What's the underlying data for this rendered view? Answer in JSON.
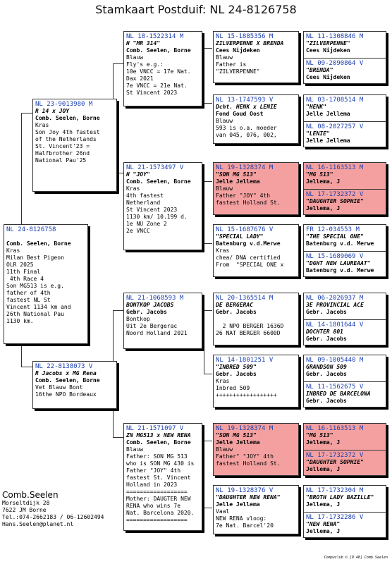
{
  "title": "Stamkaart Postduif: NL  24-8126758",
  "subject": {
    "ring": "NL  24-8126758",
    "name": "",
    "owner": "Comb. Seelen, Borne",
    "color": "Kras",
    "notes": "Milan Best Pigeon\nOLR 2025\n11th Final\n 4th Race 4\nSon MG513 is e.g.\nfather of 4th\nfastest NL St\nVincent 1134 km and\n26th National Pau\n1130 km."
  },
  "gen1": [
    {
      "ring": "NL  23-9013980 M",
      "name": "R 14 x JOY",
      "owner": "Comb. Seelen, Borne",
      "color": "Kras",
      "notes": "Son Joy 4th fastest\nof the Netherlands\nSt. Vincent'23 =\nHalfbrother 26nd\nNational Pau'25"
    },
    {
      "ring": "NL  22-8138073 V",
      "name": "R Jacobs x MG Rena",
      "owner": "Comb. Seelen, Borne",
      "color": "Vet Blauw Bont",
      "notes": "16the NPO Bordeaux"
    }
  ],
  "gen2": [
    {
      "ring": "NL  18-1522314 M",
      "name": "H \"MR 314\"",
      "owner": "Comb. Seelen, Borne",
      "color": "Blauw",
      "notes": "Fly's e.g.:\n10e VNCC = 17e Nat.\nDax 2021\n7e VNCC = 21e Nat.\nSt Vincent 2023"
    },
    {
      "ring": "NL  21-1573497 V",
      "name": "H \"JOY\"",
      "owner": "Comb. Seelen, Borne",
      "color": "Kras",
      "notes": "4th fastest\nNetherland\nSt Vincent 2023\n1130 km/ 10.199 d.\n1e NU Zone 2\n2e VNCC"
    },
    {
      "ring": "NL  21-1068593 M",
      "name": "BONTKOP JACOBS",
      "owner": "Gebr. Jacobs",
      "color": "Bontkop",
      "notes": "Uit 2e Bergerac\nNoord Holland 2021"
    },
    {
      "ring": "NL  21-1571097 V",
      "name": "ZN MG513 x NEW RENA",
      "owner": "Comb. Seelen, Borne",
      "color": "Blauw",
      "notes": "Father: SON MG 513\nwho is SON MG 430 is\nFather \"JOY\" 4th\nfastest St. Vincent\nHolland in 2023\n==================\nMother: DAUGTER NEW\nRENA who wins 7e\nNat. Barcelona 2020.\n=================="
    }
  ],
  "gen3": [
    {
      "ring": "NL  15-1885356 M",
      "name": "ZILVERPENNE X BRENDA",
      "owner": "Cees Nijdeken",
      "color": "Blauw",
      "notes": "Father is\n\"ZILVERPENNE\""
    },
    {
      "ring": "NL  13-1747593 V",
      "name": "Dcht. HENK x LENIE",
      "owner": "Fond Goud Oost",
      "color": "Blauw",
      "notes": "593 is o.a. moeder\nvan 045, 076, 002,"
    },
    {
      "ring": "NL  19-1328374 M",
      "name": "\"SON MG 513\"",
      "owner": "Jelle Jellema",
      "color": "Blauw",
      "notes": "Father \"JOY\" 4th\nfastest Holland St."
    },
    {
      "ring": "NL  15-1687676 V",
      "name": "\"SPECIAL LADY\"",
      "owner": "Batenburg v.d.Merwe",
      "color": "Kras",
      "notes": "chea/ DNA certified\nFrom  \"SPECIAL ONE x"
    },
    {
      "ring": "NL  20-1365514 M",
      "name": "DE BERGERAC",
      "owner": "Gebr. Jacobs",
      "color": "",
      "notes": "\n  2 NPO BERGER 1636D\n26 NAT BERGER 6600D"
    },
    {
      "ring": "NL  14-1801251 V",
      "name": "\"INBRED 509\"",
      "owner": "Gebr. Jacobs",
      "color": "Kras",
      "notes": "Inbred 509\n++++++++++++++++++"
    },
    {
      "ring": "NL  19-1328374 M",
      "name": "\"SON MG 513\"",
      "owner": "Jelle Jellema",
      "color": "Blauw",
      "notes": "Father\" \"JOY\" 4th\nfastest Holland St."
    },
    {
      "ring": "NL  19-1328376 V",
      "name": "\"DAUGHTER NEW RENA\"",
      "owner": "Jelle Jellema",
      "color": "Vaal",
      "notes": "NEW RENA vloog:\n7e Nat. Barcel'20"
    }
  ],
  "gen4": [
    {
      "ring": "NL  11-1308846 M",
      "name": "\"ZILVERPENNE\"",
      "owner": "Cees Nijdeken"
    },
    {
      "ring": "NL  09-2090864 V",
      "name": "\"BRENDA\"",
      "owner": "Cees Nijdeken"
    },
    {
      "ring": "NL  03-1708514 M",
      "name": "\"HENK\"",
      "owner": "Jelle Jellema"
    },
    {
      "ring": "NL  08-2027257 V",
      "name": "\"LENIE\"",
      "owner": "Jelle Jellema"
    },
    {
      "ring": "NL  16-1163513 M",
      "name": "\"MG 513\"",
      "owner": "Jellema, J"
    },
    {
      "ring": "NL  17-1732372 V",
      "name": "\"DAUGHTER SOPHIE\"",
      "owner": "Jellema, J"
    },
    {
      "ring": "FR  12-034553 M",
      "name": "\"THE SPECIAL ONE\"",
      "owner": "Batenburg v.d. Merwe"
    },
    {
      "ring": "NL  15-1689069 V",
      "name": "\"DGHT NEW LAUREAAT\"",
      "owner": "Batenburg v.d. Merwe"
    },
    {
      "ring": "NL  06-2026937 M",
      "name": "3E PROVINCIAL ACE",
      "owner": "Gebr. Jacobs"
    },
    {
      "ring": "NL  14-1801644 V",
      "name": "DOCHTER 801",
      "owner": "Gebr. Jacobs"
    },
    {
      "ring": "NL  09-1005440 M",
      "name": "GRANDSON 509",
      "owner": "Gebr. Jacobs"
    },
    {
      "ring": "NL  11-1562675 V",
      "name": "INBRED DE BARCELONA",
      "owner": "Gebr. Jacobs"
    },
    {
      "ring": "NL  16-1163513 M",
      "name": "\"MG 513\"",
      "owner": "Jellema, J"
    },
    {
      "ring": "NL  17-1732372 V",
      "name": "\"DAUGHTER SOPHIE\"",
      "owner": "Jellema, J"
    },
    {
      "ring": "NL  17-1732304 M",
      "name": "\"BROTH LADY BAZILLE\"",
      "owner": "Jellema, J"
    },
    {
      "ring": "NL  17-1732286 V",
      "name": "\"NEW RENA\"",
      "owner": "Jellema, J"
    }
  ],
  "breeder": {
    "name": "Comb.Seelen",
    "address": "Morseltdijk 28",
    "city": "7622 JM  Borne",
    "phone": "Tel.:074-2662183 / 06-12602494",
    "email": "Hans.Seelen@planet.nl"
  },
  "footer": "Compuclub © [9.48]  Comb.Seelen"
}
